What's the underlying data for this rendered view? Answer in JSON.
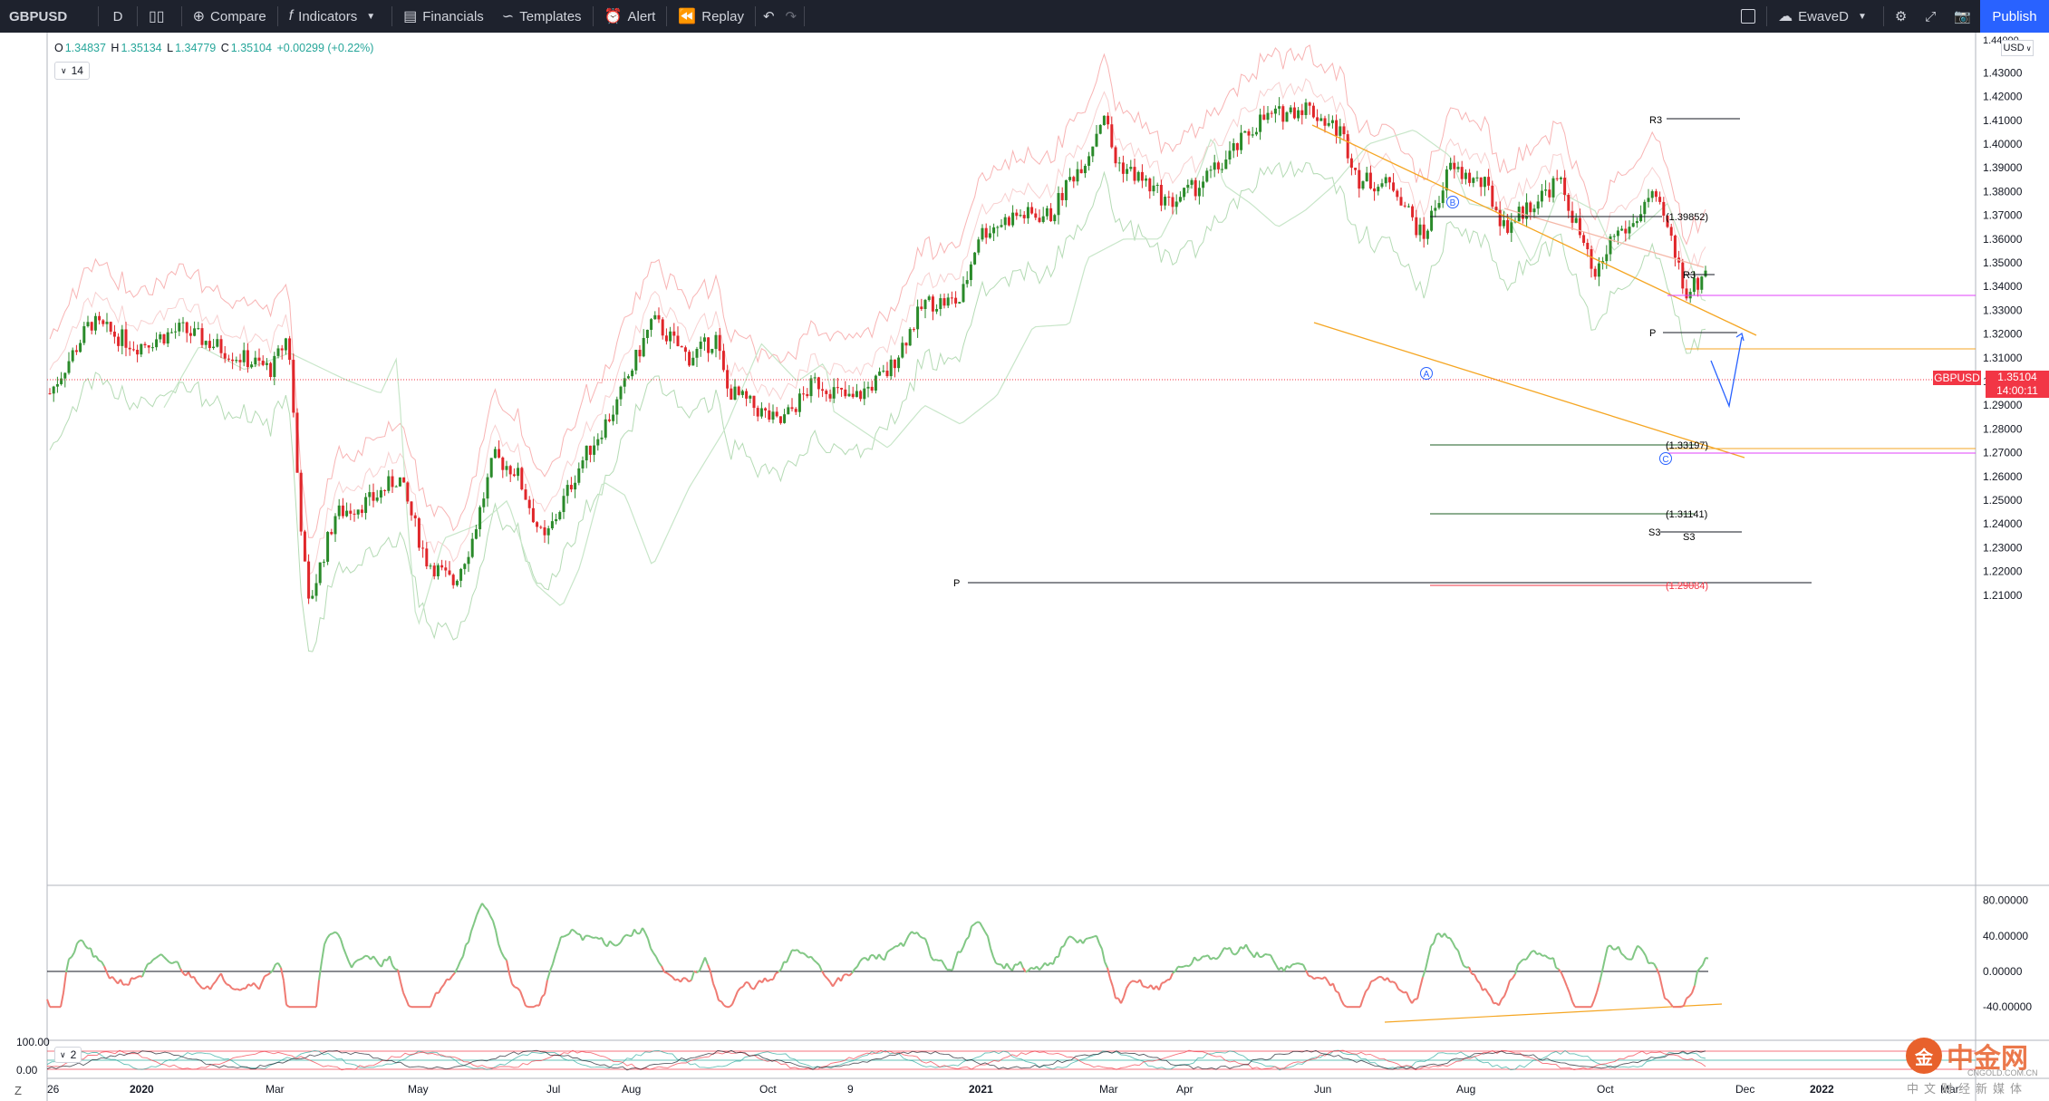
{
  "toolbar": {
    "symbol": "GBPUSD",
    "interval": "D",
    "compare": "Compare",
    "indicators": "Indicators",
    "financials": "Financials",
    "templates": "Templates",
    "alert": "Alert",
    "replay": "Replay",
    "layout_name": "EwaveD",
    "publish": "Publish"
  },
  "legend": {
    "open_label": "O",
    "open": "1.34837",
    "high_label": "H",
    "high": "1.35134",
    "low_label": "L",
    "low": "1.34779",
    "close_label": "C",
    "close": "1.35104",
    "change": "+0.00299 (+0.22%)",
    "indicator_length": "14",
    "indicator2_length": "2"
  },
  "price_scale": {
    "currency": "USD",
    "labels": [
      "1.43000",
      "1.42000",
      "1.41000",
      "1.40000",
      "1.39000",
      "1.38000",
      "1.37000",
      "1.36000",
      "1.35000",
      "1.34000",
      "1.33000",
      "1.32000",
      "1.31000",
      "1.30000",
      "1.29000",
      "1.28000",
      "1.27000",
      "1.26000",
      "1.25000",
      "1.24000",
      "1.23000",
      "1.22000",
      "1.21000"
    ],
    "top_label": "1.44000"
  },
  "osc_scale": {
    "labels": [
      "80.00000",
      "40.00000",
      "0.00000",
      "-40.00000"
    ]
  },
  "osc2_scale": {
    "labels": [
      "100.00",
      "0.00"
    ]
  },
  "time_axis": [
    "2020",
    "Mar",
    "May",
    "Jul",
    "Aug",
    "Oct",
    "9",
    "2021",
    "Mar",
    "Apr",
    "Jun",
    "Aug",
    "Oct",
    "Dec",
    "2022",
    "Mar"
  ],
  "time_axis_first": "26",
  "last_price": {
    "symbol": "GBPUSD",
    "price": "1.35104",
    "countdown": "14:00:11"
  },
  "annotations": {
    "r3_top": "R3",
    "level_1": "(1.39852)",
    "r3_mid": "R3",
    "p_mid": "P",
    "level_2": "(1.33197)",
    "level_3": "(1.31141)",
    "s3_a": "S3",
    "s3_b": "S3",
    "p_low": "P",
    "level_4": "(1.29084)",
    "wave_a": "A",
    "wave_b": "B",
    "wave_c": "C"
  },
  "watermark": {
    "logo": "金",
    "name": "中金网",
    "url": "CNGOLD.COM.CN",
    "sub": "中文财经新媒体"
  },
  "z_button": "Z",
  "colors": {
    "up": "#26a69a",
    "down": "#f23645",
    "candle_up": "#2a8a2a",
    "candle_down": "#e0262a",
    "accent": "#2962ff"
  }
}
